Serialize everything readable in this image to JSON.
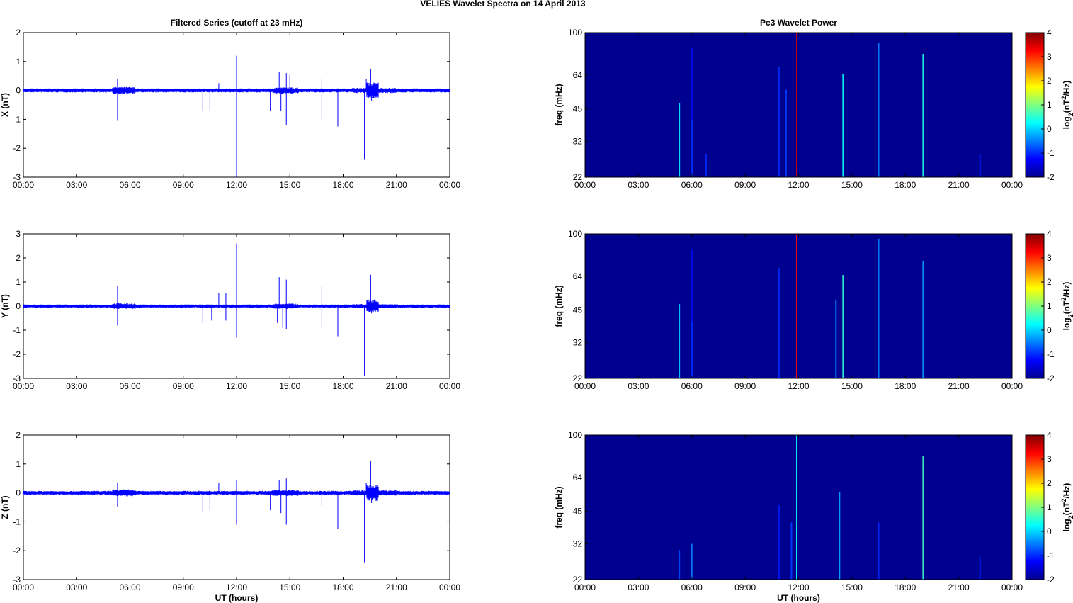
{
  "figure_title": "VELIES Wavelet Spectra on 14 April     2013",
  "colors": {
    "trace": "#0000ff",
    "spectrogram_bg": "#00008f",
    "axis": "#000000"
  },
  "chart_data": [
    {
      "type": "line",
      "title": "Filtered Series (cutoff at 23 mHz)",
      "ylabel": "X (nT)",
      "xlabel": "",
      "xlim": [
        "00:00",
        "24:00"
      ],
      "ylim": [
        -3,
        2
      ],
      "x_ticks": [
        "00:00",
        "03:00",
        "06:00",
        "09:00",
        "12:00",
        "15:00",
        "18:00",
        "21:00",
        "00:00"
      ],
      "y_ticks": [
        "2",
        "1",
        "0",
        "-1",
        "-2",
        "-3"
      ],
      "series": [
        {
          "x_hours": [
            0,
            24
          ],
          "values": [
            0,
            0
          ]
        }
      ],
      "spikes": [
        {
          "t": 5.3,
          "v": -1.05
        },
        {
          "t": 5.3,
          "v": 0.4
        },
        {
          "t": 6.0,
          "v": -0.65
        },
        {
          "t": 6.0,
          "v": 0.5
        },
        {
          "t": 10.1,
          "v": -0.7
        },
        {
          "t": 10.5,
          "v": -0.7
        },
        {
          "t": 11.0,
          "v": 0.25
        },
        {
          "t": 12.0,
          "v": 1.2
        },
        {
          "t": 12.0,
          "v": -3.0
        },
        {
          "t": 13.9,
          "v": -0.7
        },
        {
          "t": 14.4,
          "v": 0.65
        },
        {
          "t": 14.5,
          "v": -0.7
        },
        {
          "t": 14.8,
          "v": 0.6
        },
        {
          "t": 14.8,
          "v": -1.2
        },
        {
          "t": 15.0,
          "v": 0.55
        },
        {
          "t": 16.8,
          "v": 0.4
        },
        {
          "t": 16.8,
          "v": -1.0
        },
        {
          "t": 17.7,
          "v": -1.25
        },
        {
          "t": 19.2,
          "v": -2.4
        },
        {
          "t": 19.3,
          "v": 0.4
        },
        {
          "t": 19.55,
          "v": 0.75
        },
        {
          "t": 19.6,
          "v": -0.35
        }
      ]
    },
    {
      "type": "line",
      "title": "",
      "ylabel": "Y (nT)",
      "xlabel": "",
      "xlim": [
        "00:00",
        "24:00"
      ],
      "ylim": [
        -3,
        3
      ],
      "x_ticks": [
        "00:00",
        "03:00",
        "06:00",
        "09:00",
        "12:00",
        "15:00",
        "18:00",
        "21:00",
        "00:00"
      ],
      "y_ticks": [
        "3",
        "2",
        "1",
        "0",
        "-1",
        "-2",
        "-3"
      ],
      "series": [
        {
          "x_hours": [
            0,
            24
          ],
          "values": [
            0,
            0
          ]
        }
      ],
      "spikes": [
        {
          "t": 5.3,
          "v": 0.85
        },
        {
          "t": 5.3,
          "v": -0.8
        },
        {
          "t": 6.0,
          "v": 0.85
        },
        {
          "t": 6.0,
          "v": -0.5
        },
        {
          "t": 10.1,
          "v": -0.7
        },
        {
          "t": 10.6,
          "v": -0.6
        },
        {
          "t": 11.0,
          "v": 0.55
        },
        {
          "t": 11.4,
          "v": 0.55
        },
        {
          "t": 11.4,
          "v": -0.6
        },
        {
          "t": 12.0,
          "v": 2.6
        },
        {
          "t": 12.0,
          "v": -1.3
        },
        {
          "t": 14.3,
          "v": -0.7
        },
        {
          "t": 14.4,
          "v": 1.2
        },
        {
          "t": 14.6,
          "v": -0.9
        },
        {
          "t": 14.8,
          "v": 1.1
        },
        {
          "t": 14.8,
          "v": -0.95
        },
        {
          "t": 16.8,
          "v": 0.85
        },
        {
          "t": 16.8,
          "v": -0.9
        },
        {
          "t": 17.7,
          "v": -1.25
        },
        {
          "t": 19.2,
          "v": -2.9
        },
        {
          "t": 19.55,
          "v": 1.3
        },
        {
          "t": 19.6,
          "v": -0.3
        }
      ]
    },
    {
      "type": "line",
      "title": "",
      "ylabel": "Z (nT)",
      "xlabel": "UT (hours)",
      "xlim": [
        "00:00",
        "24:00"
      ],
      "ylim": [
        -3,
        2
      ],
      "x_ticks": [
        "00:00",
        "03:00",
        "06:00",
        "09:00",
        "12:00",
        "15:00",
        "18:00",
        "21:00",
        "00:00"
      ],
      "y_ticks": [
        "2",
        "1",
        "0",
        "-1",
        "-2",
        "-3"
      ],
      "series": [
        {
          "x_hours": [
            0,
            24
          ],
          "values": [
            0,
            0
          ]
        }
      ],
      "spikes": [
        {
          "t": 5.3,
          "v": -0.5
        },
        {
          "t": 5.3,
          "v": 0.35
        },
        {
          "t": 6.0,
          "v": -0.45
        },
        {
          "t": 6.0,
          "v": 0.3
        },
        {
          "t": 10.1,
          "v": -0.65
        },
        {
          "t": 10.5,
          "v": -0.6
        },
        {
          "t": 11.0,
          "v": 0.35
        },
        {
          "t": 12.0,
          "v": 0.45
        },
        {
          "t": 12.0,
          "v": -1.1
        },
        {
          "t": 13.9,
          "v": -0.6
        },
        {
          "t": 14.4,
          "v": 0.45
        },
        {
          "t": 14.5,
          "v": -0.7
        },
        {
          "t": 14.8,
          "v": 0.5
        },
        {
          "t": 14.8,
          "v": -1.1
        },
        {
          "t": 16.8,
          "v": -0.45
        },
        {
          "t": 17.7,
          "v": -1.25
        },
        {
          "t": 19.2,
          "v": -2.4
        },
        {
          "t": 19.3,
          "v": 0.35
        },
        {
          "t": 19.55,
          "v": 1.1
        },
        {
          "t": 19.6,
          "v": -0.35
        }
      ]
    },
    {
      "type": "heatmap",
      "title": "Pc3 Wavelet Power",
      "ylabel": "freq (mHz)",
      "xlabel": "",
      "xlim": [
        "00:00",
        "24:00"
      ],
      "ylim": [
        22,
        100
      ],
      "log_y": true,
      "x_ticks": [
        "00:00",
        "03:00",
        "06:00",
        "09:00",
        "12:00",
        "15:00",
        "18:00",
        "21:00",
        "00:00"
      ],
      "y_ticks": [
        "100",
        "64",
        "45",
        "32",
        "22"
      ],
      "colorbar": {
        "label": "log2(nT2/Hz)",
        "label_main": "log",
        "label_sub": "2",
        "label_mid": "(nT",
        "label_sup": "2",
        "label_end": "/Hz)",
        "range": [
          -2,
          4
        ],
        "ticks": [
          "4",
          "3",
          "2",
          "1",
          "0",
          "-1",
          "-2"
        ]
      },
      "features": [
        {
          "t": 5.3,
          "fmax": 48,
          "level": 0.2
        },
        {
          "t": 6.0,
          "fmax": 40,
          "level": 0.4
        },
        {
          "t": 6.0,
          "fmax": 85,
          "level": -1.2
        },
        {
          "t": 6.8,
          "fmax": 28,
          "level": -1.0
        },
        {
          "t": 10.9,
          "fmax": 70,
          "level": -1.0
        },
        {
          "t": 11.3,
          "fmax": 55,
          "level": -0.9
        },
        {
          "t": 11.9,
          "fmax": 100,
          "level": 3.5
        },
        {
          "t": 14.5,
          "fmax": 65,
          "level": 0.3
        },
        {
          "t": 16.5,
          "fmax": 90,
          "level": -0.5
        },
        {
          "t": 19.0,
          "fmax": 80,
          "level": 0.4
        },
        {
          "t": 22.2,
          "fmax": 28,
          "level": -1.1
        }
      ]
    },
    {
      "type": "heatmap",
      "title": "",
      "ylabel": "freq (mHz)",
      "xlabel": "",
      "xlim": [
        "00:00",
        "24:00"
      ],
      "ylim": [
        22,
        100
      ],
      "log_y": true,
      "x_ticks": [
        "00:00",
        "03:00",
        "06:00",
        "09:00",
        "12:00",
        "15:00",
        "18:00",
        "21:00",
        "00:00"
      ],
      "y_ticks": [
        "100",
        "64",
        "45",
        "32",
        "22"
      ],
      "colorbar": {
        "label": "log2(nT2/Hz)",
        "label_main": "log",
        "label_sub": "2",
        "label_mid": "(nT",
        "label_sup": "2",
        "label_end": "/Hz)",
        "range": [
          -2,
          4
        ],
        "ticks": [
          "4",
          "3",
          "2",
          "1",
          "0",
          "-1",
          "-2"
        ]
      },
      "features": [
        {
          "t": 5.3,
          "fmax": 48,
          "level": 0.0
        },
        {
          "t": 6.0,
          "fmax": 40,
          "level": 0.2
        },
        {
          "t": 6.0,
          "fmax": 85,
          "level": -1.2
        },
        {
          "t": 10.9,
          "fmax": 70,
          "level": -1.0
        },
        {
          "t": 11.9,
          "fmax": 100,
          "level": 3.2
        },
        {
          "t": 14.1,
          "fmax": 50,
          "level": -0.5
        },
        {
          "t": 14.5,
          "fmax": 65,
          "level": 0.5
        },
        {
          "t": 16.5,
          "fmax": 95,
          "level": -0.5
        },
        {
          "t": 19.0,
          "fmax": 75,
          "level": -0.3
        }
      ]
    },
    {
      "type": "heatmap",
      "title": "",
      "ylabel": "freq (mHz)",
      "xlabel": "UT (hours)",
      "xlim": [
        "00:00",
        "24:00"
      ],
      "ylim": [
        22,
        100
      ],
      "log_y": true,
      "x_ticks": [
        "00:00",
        "03:00",
        "06:00",
        "09:00",
        "12:00",
        "15:00",
        "18:00",
        "21:00",
        "00:00"
      ],
      "y_ticks": [
        "100",
        "64",
        "45",
        "32",
        "22"
      ],
      "colorbar": {
        "label": "log2(nT2/Hz)",
        "label_main": "log",
        "label_sub": "2",
        "label_mid": "(nT",
        "label_sup": "2",
        "label_end": "/Hz)",
        "range": [
          -2,
          4
        ],
        "ticks": [
          "4",
          "3",
          "2",
          "1",
          "0",
          "-1",
          "-2"
        ]
      },
      "features": [
        {
          "t": 5.3,
          "fmax": 30,
          "level": -0.8
        },
        {
          "t": 6.0,
          "fmax": 32,
          "level": -0.5
        },
        {
          "t": 10.9,
          "fmax": 48,
          "level": -1.1
        },
        {
          "t": 11.6,
          "fmax": 40,
          "level": -0.9
        },
        {
          "t": 11.9,
          "fmax": 100,
          "level": 0.3
        },
        {
          "t": 14.3,
          "fmax": 55,
          "level": -0.2
        },
        {
          "t": 16.5,
          "fmax": 40,
          "level": -1.0
        },
        {
          "t": 19.0,
          "fmax": 80,
          "level": 0.6
        },
        {
          "t": 22.2,
          "fmax": 28,
          "level": -1.1
        }
      ]
    }
  ]
}
